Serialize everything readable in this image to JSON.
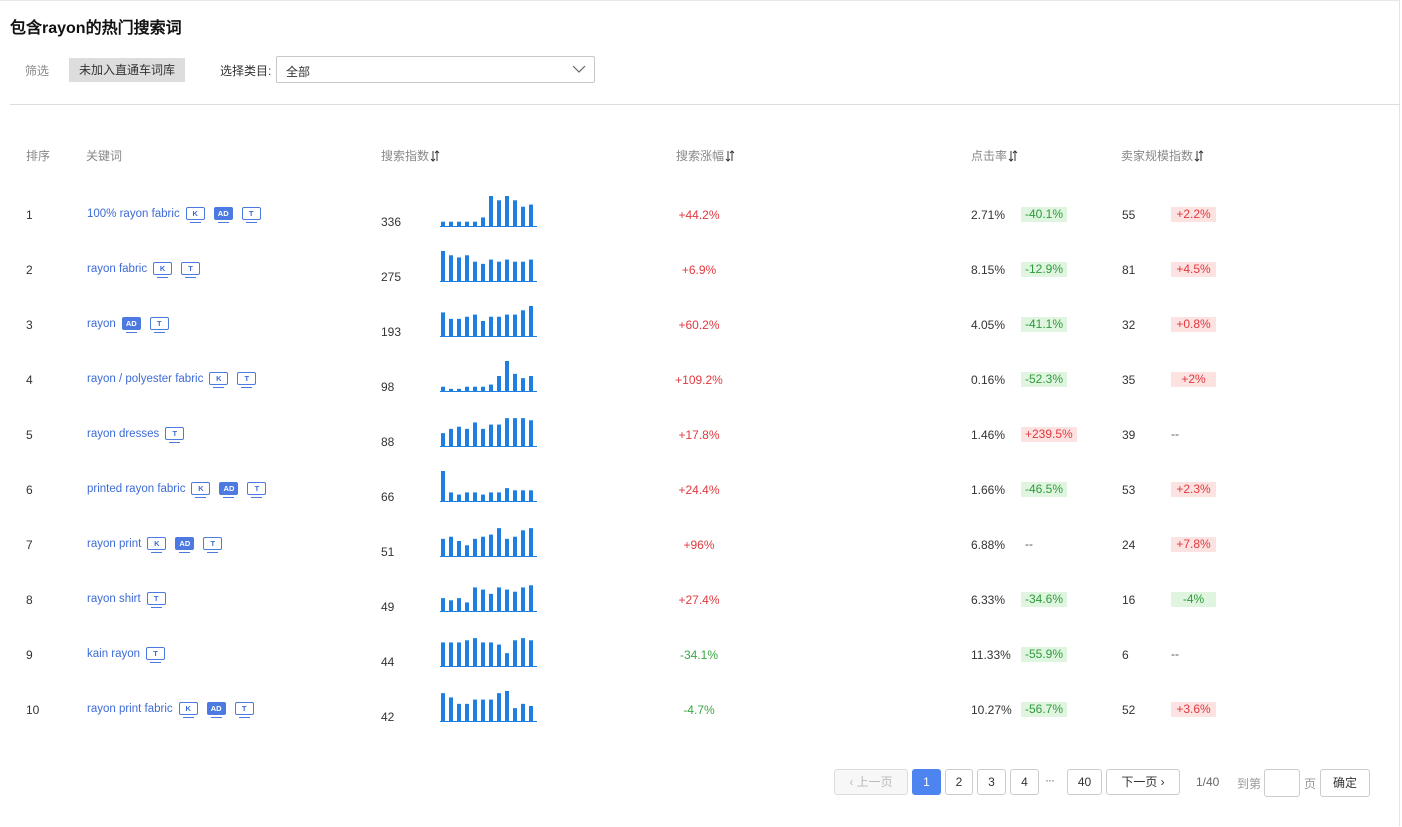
{
  "title": "包含rayon的热门搜索词",
  "filter": {
    "label": "筛选",
    "button": "未加入直通车词库"
  },
  "category": {
    "label": "选择类目:",
    "value": "全部"
  },
  "columns": {
    "rank": "排序",
    "keyword": "关键词",
    "search_index": "搜索指数",
    "search_growth": "搜索涨幅",
    "ctr": "点击率",
    "seller_index": "卖家规模指数"
  },
  "rows": [
    {
      "rank": "1",
      "keyword": "100% rayon fabric",
      "tags": [
        "K",
        "AD",
        "T"
      ],
      "search_index": "336",
      "trend": [
        2,
        2,
        2,
        2,
        2,
        4,
        14,
        12,
        14,
        12,
        9,
        10
      ],
      "growth": "+44.2%",
      "growth_dir": "up",
      "ctr": "2.71%",
      "ctr_change": "-40.1%",
      "ctr_dir": "down",
      "seller": "55",
      "seller_change": "+2.2%",
      "seller_dir": "up"
    },
    {
      "rank": "2",
      "keyword": "rayon fabric",
      "tags": [
        "K",
        "T"
      ],
      "search_index": "275",
      "trend": [
        14,
        12,
        11,
        12,
        9,
        8,
        10,
        9,
        10,
        9,
        9,
        10
      ],
      "growth": "+6.9%",
      "growth_dir": "up",
      "ctr": "8.15%",
      "ctr_change": "-12.9%",
      "ctr_dir": "down",
      "seller": "81",
      "seller_change": "+4.5%",
      "seller_dir": "up"
    },
    {
      "rank": "3",
      "keyword": "rayon",
      "tags": [
        "AD",
        "T"
      ],
      "search_index": "193",
      "trend": [
        11,
        8,
        8,
        9,
        10,
        7,
        9,
        9,
        10,
        10,
        12,
        14
      ],
      "growth": "+60.2%",
      "growth_dir": "up",
      "ctr": "4.05%",
      "ctr_change": "-41.1%",
      "ctr_dir": "down",
      "seller": "32",
      "seller_change": "+0.8%",
      "seller_dir": "up"
    },
    {
      "rank": "4",
      "keyword": "rayon / polyester fabric",
      "tags": [
        "K",
        "T"
      ],
      "search_index": "98",
      "trend": [
        2,
        1,
        1,
        2,
        2,
        2,
        3,
        7,
        14,
        8,
        6,
        7
      ],
      "growth": "+109.2%",
      "growth_dir": "up",
      "ctr": "0.16%",
      "ctr_change": "-52.3%",
      "ctr_dir": "down",
      "seller": "35",
      "seller_change": "+2%",
      "seller_dir": "up"
    },
    {
      "rank": "5",
      "keyword": "rayon dresses",
      "tags": [
        "T"
      ],
      "search_index": "88",
      "trend": [
        6,
        8,
        9,
        8,
        11,
        8,
        10,
        10,
        13,
        13,
        13,
        12
      ],
      "growth": "+17.8%",
      "growth_dir": "up",
      "ctr": "1.46%",
      "ctr_change": "+239.5%",
      "ctr_dir": "up",
      "seller": "39",
      "seller_change": "--",
      "seller_dir": "none"
    },
    {
      "rank": "6",
      "keyword": "printed rayon fabric",
      "tags": [
        "K",
        "AD",
        "T"
      ],
      "search_index": "66",
      "trend": [
        14,
        4,
        3,
        4,
        4,
        3,
        4,
        4,
        6,
        5,
        5,
        5
      ],
      "growth": "+24.4%",
      "growth_dir": "up",
      "ctr": "1.66%",
      "ctr_change": "-46.5%",
      "ctr_dir": "down",
      "seller": "53",
      "seller_change": "+2.3%",
      "seller_dir": "up"
    },
    {
      "rank": "7",
      "keyword": "rayon print",
      "tags": [
        "K",
        "AD",
        "T"
      ],
      "search_index": "51",
      "trend": [
        8,
        9,
        7,
        5,
        8,
        9,
        10,
        13,
        8,
        9,
        12,
        13
      ],
      "growth": "+96%",
      "growth_dir": "up",
      "ctr": "6.88%",
      "ctr_change": "--",
      "ctr_dir": "none",
      "seller": "24",
      "seller_change": "+7.8%",
      "seller_dir": "up"
    },
    {
      "rank": "8",
      "keyword": "rayon shirt",
      "tags": [
        "T"
      ],
      "search_index": "49",
      "trend": [
        6,
        5,
        6,
        4,
        11,
        10,
        8,
        11,
        10,
        9,
        11,
        12
      ],
      "growth": "+27.4%",
      "growth_dir": "up",
      "ctr": "6.33%",
      "ctr_change": "-34.6%",
      "ctr_dir": "down",
      "seller": "16",
      "seller_change": "-4%",
      "seller_dir": "down"
    },
    {
      "rank": "9",
      "keyword": "kain rayon",
      "tags": [
        "T"
      ],
      "search_index": "44",
      "trend": [
        11,
        11,
        11,
        12,
        13,
        11,
        11,
        10,
        6,
        12,
        13,
        12
      ],
      "growth": "-34.1%",
      "growth_dir": "down",
      "ctr": "11.33%",
      "ctr_change": "-55.9%",
      "ctr_dir": "down",
      "seller": "6",
      "seller_change": "--",
      "seller_dir": "none"
    },
    {
      "rank": "10",
      "keyword": "rayon print fabric",
      "tags": [
        "K",
        "AD",
        "T"
      ],
      "search_index": "42",
      "trend": [
        13,
        11,
        8,
        8,
        10,
        10,
        10,
        13,
        14,
        6,
        8,
        7
      ],
      "growth": "-4.7%",
      "growth_dir": "down",
      "ctr": "10.27%",
      "ctr_change": "-56.7%",
      "ctr_dir": "down",
      "seller": "52",
      "seller_change": "+3.6%",
      "seller_dir": "up"
    }
  ],
  "pagination": {
    "prev": "上一页",
    "pages": [
      "1",
      "2",
      "3",
      "4"
    ],
    "ellipsis": "···",
    "last": "40",
    "next": "下一页",
    "current": "1",
    "total_label": "1/40",
    "goto_label": "到第",
    "page_suffix": "页",
    "confirm": "确定"
  },
  "colors": {
    "link": "#3d6bd6",
    "bar": "#1e7fe0",
    "up": "#e0393e",
    "down": "#3aa644",
    "active_page": "#4d84f0"
  }
}
